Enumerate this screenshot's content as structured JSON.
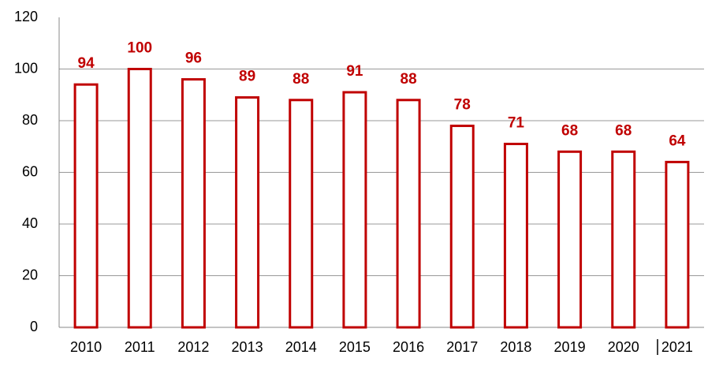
{
  "chart_data": {
    "type": "bar",
    "categories": [
      "2010",
      "2011",
      "2012",
      "2013",
      "2014",
      "2015",
      "2016",
      "2017",
      "2018",
      "2019",
      "2020",
      "2021"
    ],
    "values": [
      94,
      100,
      96,
      89,
      88,
      91,
      88,
      78,
      71,
      68,
      68,
      64
    ],
    "color": "#c00000",
    "ylim": [
      0,
      120
    ],
    "yticks": [
      0,
      20,
      40,
      60,
      80,
      100,
      120
    ],
    "grid": true
  }
}
